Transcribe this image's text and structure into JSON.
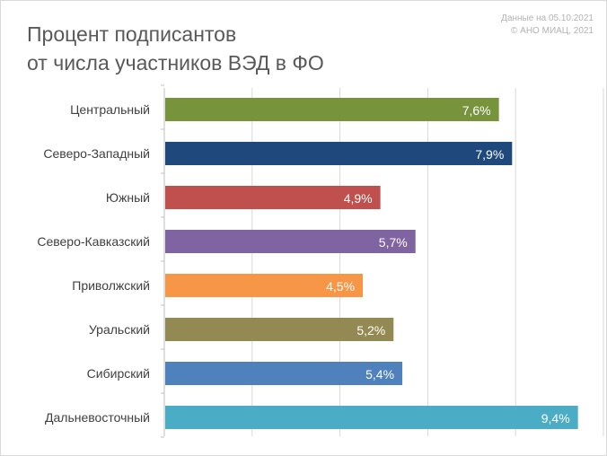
{
  "header": {
    "title_line1": "Процент подписантов",
    "title_line2": "от числа участников ВЭД в ФО",
    "source_line1": "Данные на 05.10.2021",
    "source_line2": "© АНО МИАЦ, 2021"
  },
  "chart_data": {
    "type": "bar",
    "orientation": "horizontal",
    "title": "Процент подписантов от числа участников ВЭД в ФО",
    "categories": [
      "Центральный",
      "Северо-Западный",
      "Южный",
      "Северо-Кавказский",
      "Приволжский",
      "Уральский",
      "Сибирский",
      "Дальневосточный"
    ],
    "values": [
      7.6,
      7.9,
      4.9,
      5.7,
      4.5,
      5.2,
      5.4,
      9.4
    ],
    "value_labels": [
      "7,6%",
      "7,9%",
      "4,9%",
      "5,7%",
      "4,5%",
      "5,2%",
      "5,4%",
      "9,4%"
    ],
    "colors": [
      "#77933c",
      "#1f497d",
      "#c0504d",
      "#8064a2",
      "#f79646",
      "#938953",
      "#4f81bd",
      "#4bacc6"
    ],
    "xlim": [
      0,
      10
    ],
    "grid": true,
    "legend": "none",
    "xlabel": "",
    "ylabel": ""
  }
}
